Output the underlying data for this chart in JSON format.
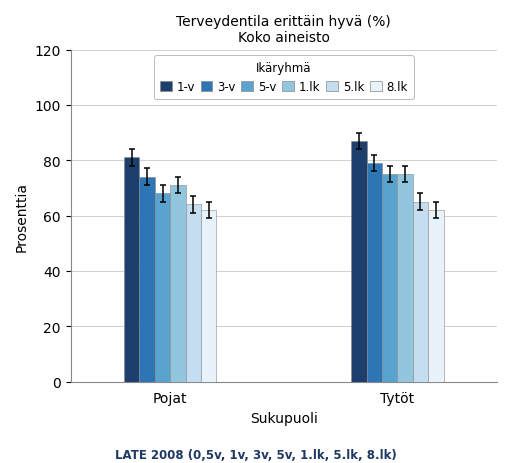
{
  "title_line1": "Terveydentila erittäin hyvä (%)",
  "title_line2": "Koko aineisto",
  "xlabel": "Sukupuoli",
  "ylabel": "Prosenttia",
  "footnote": "LATE 2008 (0,5v, 1v, 3v, 5v, 1.lk, 5.lk, 8.lk)",
  "legend_title": "Ikäryhmä",
  "legend_labels": [
    "1-v",
    "3-v",
    "5-v",
    "1.lk",
    "5.lk",
    "8.lk"
  ],
  "groups": [
    "Pojat",
    "Tytöt"
  ],
  "values": [
    [
      81,
      74,
      68,
      71,
      64,
      62
    ],
    [
      87,
      79,
      75,
      75,
      65,
      62
    ]
  ],
  "errors": [
    [
      3,
      3,
      3,
      3,
      3,
      3
    ],
    [
      3,
      3,
      3,
      3,
      3,
      3
    ]
  ],
  "bar_colors": [
    "#1c3f6e",
    "#2e75b6",
    "#5ba3cf",
    "#92c5de",
    "#c5ddf0",
    "#e8f2fa"
  ],
  "ylim": [
    0,
    120
  ],
  "yticks": [
    0,
    20,
    40,
    60,
    80,
    100,
    120
  ],
  "background_color": "#ffffff",
  "grid_color": "#d0d0d0",
  "title_color": "#000000",
  "footnote_color": "#1f3864"
}
